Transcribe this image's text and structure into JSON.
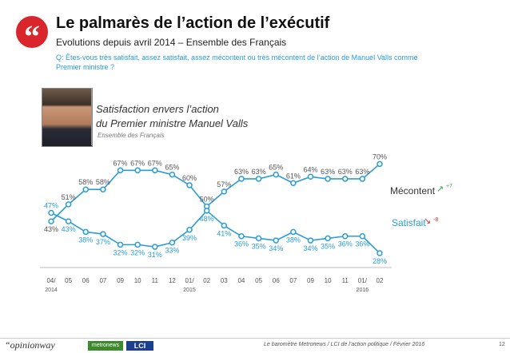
{
  "header": {
    "quote_mark": "“",
    "title": "Le palmarès de l’action de l’exécutif",
    "subtitle": "Evolutions depuis avril 2014 – Ensemble des Français",
    "question": "Q: Êtes-vous très satisfait, assez satisfait, assez mécontent ou très mécontent de l’action de Manuel Valls comme Premier ministre ?"
  },
  "chart_heading": {
    "line1": "Satisfaction envers l’action",
    "line2": "du Premier ministre Manuel Valls",
    "sub": "Ensemble des Français"
  },
  "colors": {
    "mecontent": "#2a9cd6",
    "satisfait": "#2a9cd6",
    "up": "#39a845",
    "down": "#d9262c"
  },
  "chart_data": {
    "type": "line",
    "categories": [
      "04/",
      "05",
      "06",
      "07",
      "09",
      "10",
      "11",
      "12",
      "01/",
      "02",
      "03",
      "04",
      "05",
      "06",
      "07",
      "09",
      "10",
      "11",
      "01/",
      "02"
    ],
    "year_labels": [
      {
        "index": 0,
        "label": "2014"
      },
      {
        "index": 8,
        "label": "2015"
      },
      {
        "index": 18,
        "label": "2016"
      }
    ],
    "series": [
      {
        "name": "Mécontent",
        "change": "+7",
        "values": [
          43,
          51,
          58,
          58,
          67,
          67,
          67,
          65,
          60,
          50,
          57,
          63,
          63,
          65,
          61,
          64,
          63,
          63,
          63,
          70
        ]
      },
      {
        "name": "Satisfait",
        "change": "-8",
        "values": [
          47,
          43,
          38,
          37,
          32,
          32,
          31,
          33,
          39,
          48,
          41,
          36,
          35,
          34,
          38,
          34,
          35,
          36,
          36,
          28
        ]
      }
    ],
    "ylim": [
      25,
      72
    ]
  },
  "footer": {
    "logo_opinionway": "“opinionway",
    "logo_metronews": "metronews",
    "logo_lci": "LCI",
    "text": "Le baromètre Metronews / LCI de l’action politique / Février 2016",
    "page": "12"
  }
}
